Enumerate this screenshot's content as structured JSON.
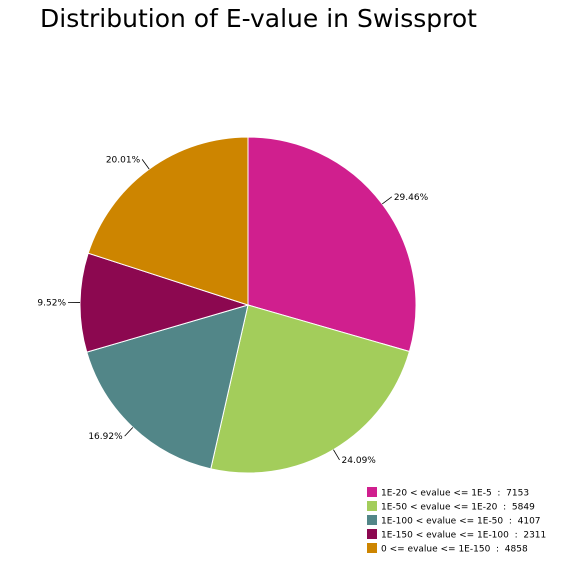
{
  "chart_data": {
    "type": "pie",
    "title": "Distribution of E-value in Swissprot",
    "slices": [
      {
        "legend": "1E-20 < evalue <= 1E-5  :  7153",
        "value": 7153,
        "percent_label": "29.46%",
        "color": "#D01F8E"
      },
      {
        "legend": "1E-50 < evalue <= 1E-20  :  5849",
        "value": 5849,
        "percent_label": "24.09%",
        "color": "#A3CD5B"
      },
      {
        "legend": "1E-100 < evalue <= 1E-50  :  4107",
        "value": 4107,
        "percent_label": "16.92%",
        "color": "#528688"
      },
      {
        "legend": "1E-150 < evalue <= 1E-100  :  2311",
        "value": 2311,
        "percent_label": "9.52%",
        "color": "#8C0850"
      },
      {
        "legend": "0 <= evalue <= 1E-150  :  4858",
        "value": 4858,
        "percent_label": "20.01%",
        "color": "#CD8500"
      }
    ],
    "start_angle": "12 o'clock",
    "direction": "clockwise",
    "legend_position": "bottom-right"
  }
}
